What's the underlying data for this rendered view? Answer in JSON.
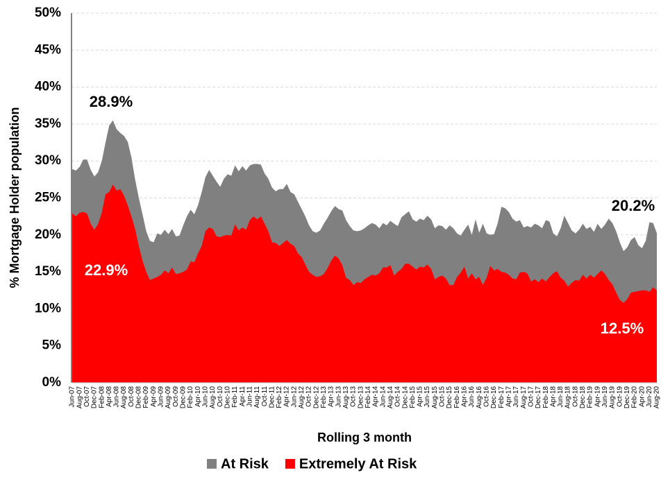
{
  "chart_data": {
    "type": "area",
    "y_label": "% Mortgage Holder population",
    "x_label": "Rolling 3 month",
    "ylim": [
      0,
      50
    ],
    "yticks": [
      {
        "value": 0,
        "label": "0%"
      },
      {
        "value": 5,
        "label": "5%"
      },
      {
        "value": 10,
        "label": "10%"
      },
      {
        "value": 15,
        "label": "15%"
      },
      {
        "value": 20,
        "label": "20%"
      },
      {
        "value": 25,
        "label": "25%"
      },
      {
        "value": 30,
        "label": "30%"
      },
      {
        "value": 35,
        "label": "35%"
      },
      {
        "value": 40,
        "label": "40%"
      },
      {
        "value": 45,
        "label": "45%"
      },
      {
        "value": 50,
        "label": "50%"
      }
    ],
    "grid": true,
    "legend": "bottom",
    "annotations": [
      "28.9%",
      "22.9%",
      "20.2%",
      "12.5%"
    ],
    "categories": [
      "Jun-07",
      null,
      "Aug-07",
      null,
      "Oct-07",
      null,
      "Dec-07",
      null,
      "Feb-08",
      null,
      "Apr-08",
      null,
      "Jun-08",
      null,
      "Aug-08",
      null,
      "Oct-08",
      null,
      "Dec-08",
      null,
      "Feb-09",
      null,
      "Apr-09",
      null,
      "Jun-09",
      null,
      "Aug-09",
      null,
      "Oct-09",
      null,
      "Dec-09",
      null,
      "Feb-10",
      null,
      "Apr-10",
      null,
      "Jun-10",
      null,
      "Aug-10",
      null,
      "Oct-10",
      null,
      "Dec-10",
      null,
      "Feb-11",
      null,
      "Apr-11",
      null,
      "Jun-11",
      null,
      "Aug-11",
      null,
      "Oct-11",
      null,
      "Dec-11",
      null,
      "Feb-12",
      null,
      "Apr-12",
      null,
      "Jun-12",
      null,
      "Aug-12",
      null,
      "Oct-12",
      null,
      "Dec-12",
      null,
      "Feb-13",
      null,
      "Apr-13",
      null,
      "Jun-13",
      null,
      "Aug-13",
      null,
      "Oct-13",
      null,
      "Dec-13",
      null,
      "Feb-14",
      null,
      "Apr-14",
      null,
      "Jun-14",
      null,
      "Aug-14",
      null,
      "Oct-14",
      null,
      "Dec-14",
      null,
      "Feb-15",
      null,
      "Apr-15",
      null,
      "Jun-15",
      null,
      "Aug-15",
      null,
      "Oct-15",
      null,
      "Dec-15",
      null,
      "Feb-16",
      null,
      "Apr-16",
      null,
      "Jun-16",
      null,
      "Aug-16",
      null,
      "Oct-16",
      null,
      "Dec-16",
      null,
      "Feb-17",
      null,
      "Apr-17",
      null,
      "Jun-17",
      null,
      "Aug-17",
      null,
      "Oct-17",
      null,
      "Dec-17",
      null,
      "Feb-18",
      null,
      "Apr-18",
      null,
      "Jun-18",
      null,
      "Aug-18",
      null,
      "Oct-18",
      null,
      "Dec-18",
      null,
      "Feb-19",
      null,
      "Apr-19",
      null,
      "Jun-19",
      null,
      "Aug-19",
      null,
      "Oct-19",
      null,
      "Dec-19",
      null,
      "Feb-20",
      null,
      "Apr-20",
      null,
      "Jun-20",
      null,
      "Aug-20"
    ],
    "series": [
      {
        "name": "At Risk",
        "color": "#808080",
        "values": [
          28.9,
          28.7,
          29.2,
          30.2,
          30.2,
          28.8,
          27.9,
          28.5,
          30.0,
          32.5,
          34.8,
          35.5,
          34.3,
          33.8,
          33.4,
          32.6,
          30.5,
          27.5,
          25.0,
          22.8,
          20.5,
          19.2,
          19.0,
          20.2,
          20.0,
          20.7,
          20.1,
          20.8,
          19.8,
          19.9,
          21.3,
          22.5,
          23.4,
          22.8,
          24.0,
          25.8,
          27.8,
          28.8,
          28.0,
          27.2,
          26.5,
          27.6,
          28.2,
          28.0,
          29.4,
          28.6,
          29.3,
          28.7,
          29.4,
          29.6,
          29.6,
          29.5,
          28.3,
          27.6,
          26.4,
          25.9,
          26.2,
          26.2,
          26.9,
          25.8,
          25.5,
          24.5,
          23.5,
          22.5,
          21.3,
          20.5,
          20.3,
          20.6,
          21.5,
          22.3,
          23.2,
          23.9,
          23.5,
          23.3,
          22.0,
          21.2,
          20.6,
          20.5,
          20.6,
          20.9,
          21.3,
          21.6,
          21.4,
          20.9,
          21.6,
          21.3,
          21.9,
          21.5,
          21.2,
          22.4,
          22.8,
          23.2,
          22.1,
          21.8,
          22.2,
          22.0,
          22.6,
          22.1,
          20.9,
          21.3,
          21.2,
          20.7,
          21.3,
          20.9,
          20.2,
          19.9,
          20.7,
          21.4,
          20.0,
          22.1,
          20.3,
          21.5,
          20.2,
          20.0,
          20.1,
          21.6,
          23.8,
          23.6,
          23.1,
          22.2,
          21.8,
          22.0,
          21.0,
          21.2,
          21.0,
          21.5,
          21.3,
          20.9,
          22.0,
          21.8,
          20.2,
          19.8,
          20.9,
          22.6,
          21.6,
          20.6,
          20.2,
          20.7,
          21.5,
          20.8,
          21.1,
          20.4,
          21.5,
          20.8,
          21.4,
          22.2,
          21.6,
          20.5,
          19.0,
          17.8,
          18.3,
          19.3,
          19.7,
          18.6,
          18.2,
          19.2,
          21.7,
          21.6,
          20.2
        ]
      },
      {
        "name": "Extremely At Risk",
        "color": "#ff0000",
        "values": [
          22.9,
          22.5,
          23.0,
          23.1,
          22.9,
          21.5,
          20.7,
          21.5,
          23.0,
          25.5,
          25.8,
          26.8,
          26.0,
          26.2,
          25.3,
          24.0,
          22.5,
          20.8,
          18.5,
          16.5,
          15.0,
          13.9,
          14.1,
          14.3,
          14.6,
          15.2,
          14.8,
          15.6,
          14.7,
          14.8,
          15.0,
          15.3,
          16.4,
          16.3,
          17.5,
          18.5,
          20.5,
          21.0,
          20.8,
          19.8,
          19.7,
          19.9,
          20.0,
          19.9,
          21.4,
          20.6,
          21.0,
          20.7,
          22.0,
          22.5,
          22.1,
          22.5,
          21.5,
          20.5,
          19.0,
          18.9,
          18.5,
          18.9,
          19.3,
          18.8,
          18.5,
          17.5,
          17.0,
          16.0,
          15.0,
          14.6,
          14.3,
          14.4,
          14.7,
          15.5,
          16.5,
          17.2,
          16.8,
          15.9,
          14.2,
          13.9,
          13.2,
          13.6,
          13.5,
          14.0,
          14.3,
          14.6,
          14.5,
          14.8,
          15.6,
          15.6,
          15.9,
          14.5,
          15.0,
          15.4,
          16.1,
          16.1,
          15.7,
          15.3,
          15.7,
          15.6,
          16.0,
          15.4,
          14.0,
          14.3,
          14.5,
          14.1,
          13.2,
          13.2,
          14.3,
          14.9,
          15.7,
          14.1,
          14.8,
          14.0,
          14.3,
          13.2,
          14.2,
          15.8,
          15.2,
          15.4,
          15.0,
          14.9,
          14.6,
          14.1,
          14.0,
          14.9,
          15.0,
          14.8,
          13.7,
          14.0,
          13.6,
          14.1,
          13.7,
          14.3,
          14.8,
          15.1,
          14.2,
          13.8,
          13.0,
          13.5,
          13.9,
          13.8,
          14.6,
          14.1,
          14.6,
          14.2,
          14.7,
          15.2,
          14.7,
          13.9,
          13.3,
          12.2,
          11.2,
          10.8,
          11.3,
          12.2,
          12.3,
          12.4,
          12.5,
          12.5,
          12.3,
          12.9,
          12.5
        ]
      }
    ]
  }
}
